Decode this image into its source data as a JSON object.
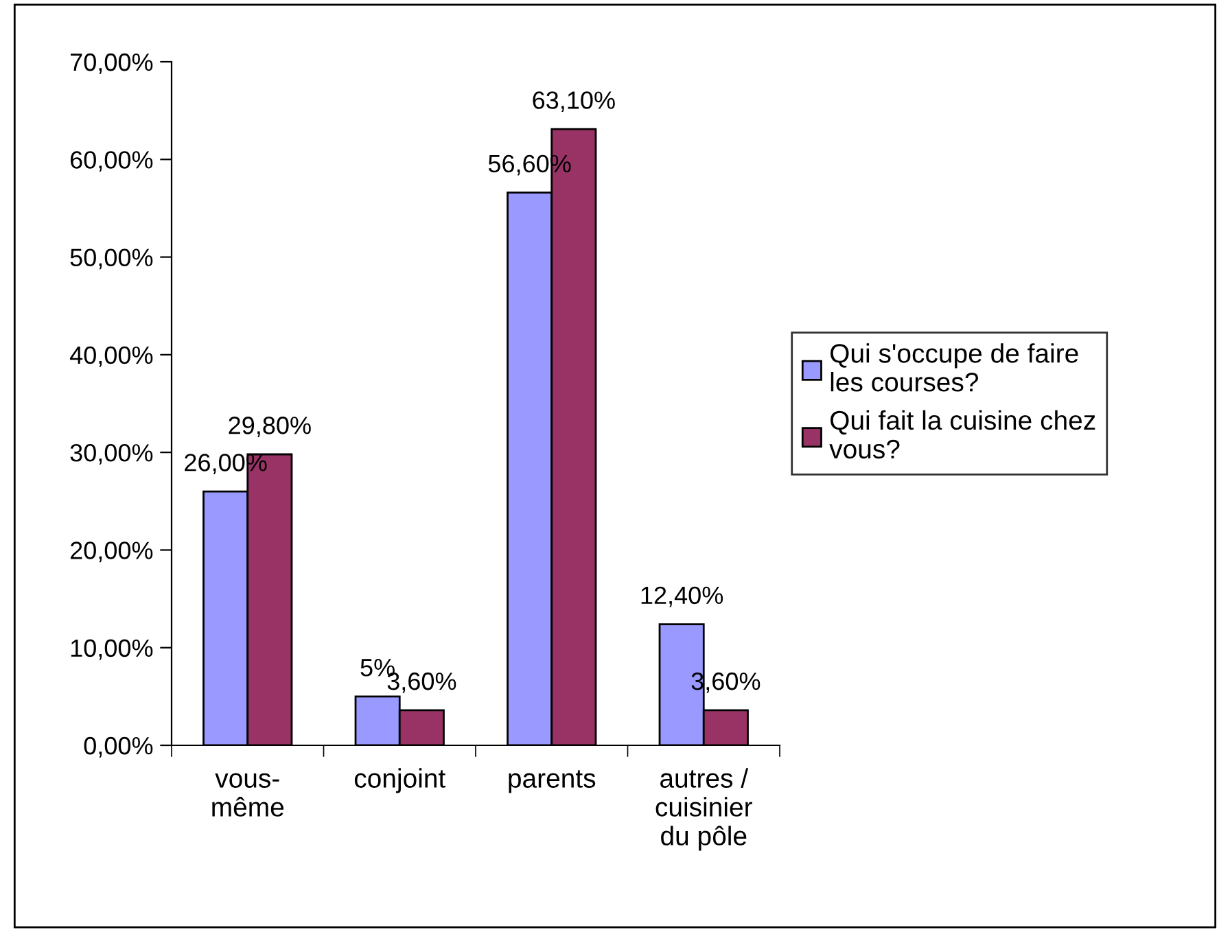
{
  "chart_data": {
    "type": "bar",
    "categories": [
      "vous-\nmême",
      "conjoint",
      "parents",
      "autres /\ncuisinier\ndu pôle"
    ],
    "series": [
      {
        "name": "Qui s'occupe de faire\nles courses?",
        "color": "#9999ff",
        "values": [
          26.0,
          5,
          56.6,
          12.4
        ],
        "value_labels": [
          "26,00%",
          "5%",
          "56,60%",
          "12,40%"
        ]
      },
      {
        "name": "Qui fait la cuisine chez\nvous?",
        "color": "#993366",
        "values": [
          29.8,
          3.6,
          63.1,
          3.6
        ],
        "value_labels": [
          "29,80%",
          "3,60%",
          "63,10%",
          "3,60%"
        ]
      }
    ],
    "ylim": [
      0,
      70
    ],
    "yticks": [
      {
        "value": 0,
        "label": "0,00%"
      },
      {
        "value": 10,
        "label": "10,00%"
      },
      {
        "value": 20,
        "label": "20,00%"
      },
      {
        "value": 30,
        "label": "30,00%"
      },
      {
        "value": 40,
        "label": "40,00%"
      },
      {
        "value": 50,
        "label": "50,00%"
      },
      {
        "value": 60,
        "label": "60,00%"
      },
      {
        "value": 70,
        "label": "70,00%"
      }
    ],
    "grid": false,
    "legend": "right"
  }
}
